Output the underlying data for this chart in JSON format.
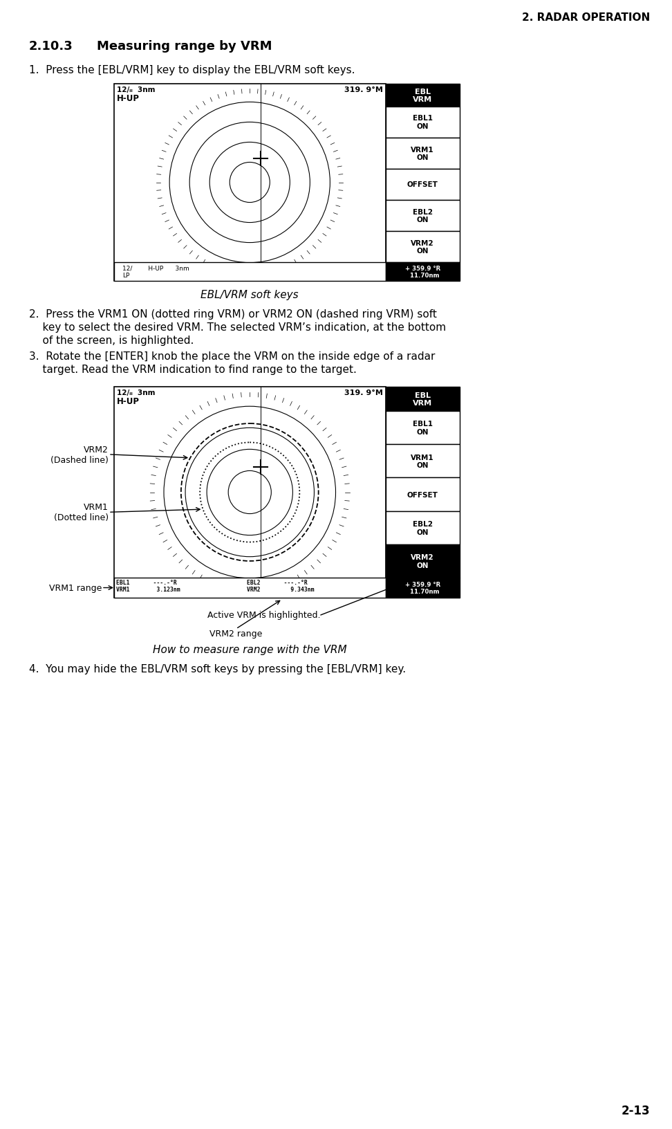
{
  "page_header": "2. RADAR OPERATION",
  "page_footer": "2-13",
  "section": "2.10.3",
  "section_title": "Measuring range by VRM",
  "step1_text": "1.  Press the [EBL/VRM] key to display the EBL/VRM soft keys.",
  "step2_line1": "2.  Press the VRM1 ON (dotted ring VRM) or VRM2 ON (dashed ring VRM) soft",
  "step2_line2": "    key to select the desired VRM. The selected VRM’s indication, at the bottom",
  "step2_line3": "    of the screen, is highlighted.",
  "step3_line1": "3.  Rotate the [ENTER] knob the place the VRM on the inside edge of a radar",
  "step3_line2": "    target. Read the VRM indication to find range to the target.",
  "step4_text": "4.  You may hide the EBL/VRM soft keys by pressing the [EBL/VRM] key.",
  "caption1": "EBL/VRM soft keys",
  "caption2": "How to measure range with the VRM",
  "softkeys": [
    "EBL1\nON",
    "VRM1\nON",
    "OFFSET",
    "EBL2\nON",
    "VRM2\nON"
  ],
  "bg_color": "#ffffff",
  "text_color": "#000000"
}
